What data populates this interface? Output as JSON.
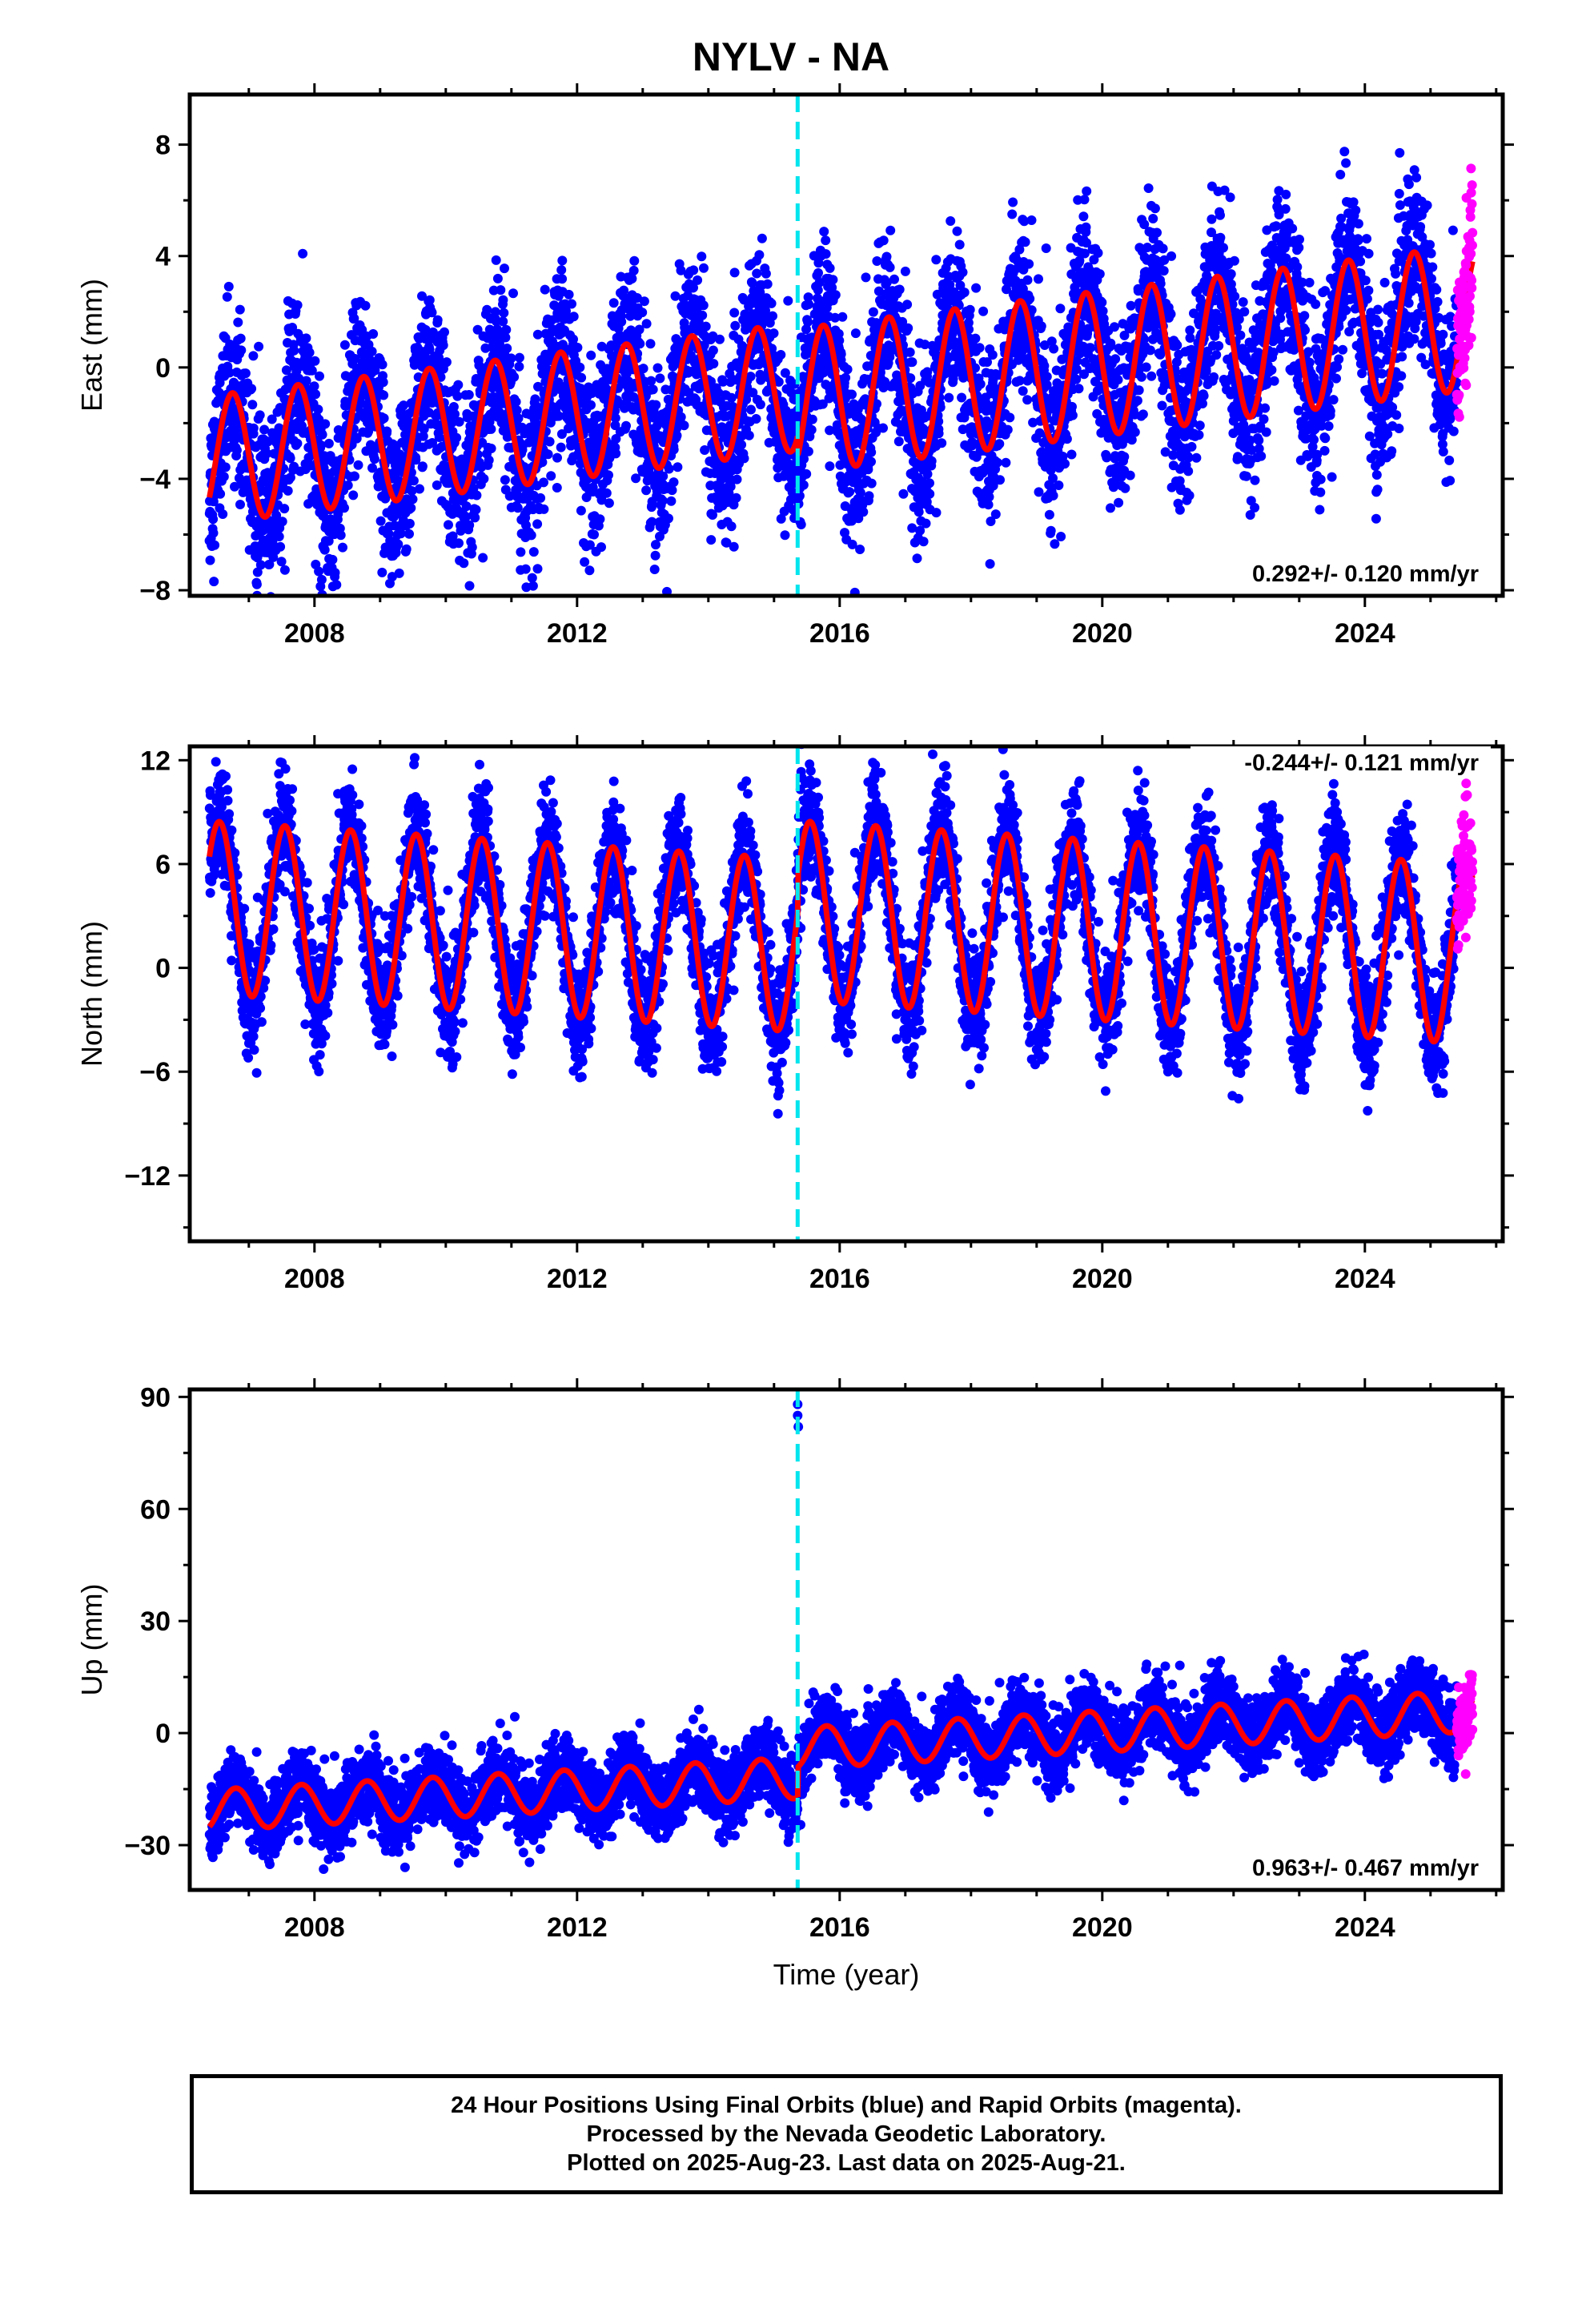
{
  "title": "NYLV - NA",
  "caption": {
    "line1": "24 Hour Positions Using Final Orbits (blue) and Rapid Orbits (magenta).",
    "line2": "Processed by the Nevada Geodetic Laboratory.",
    "line3": "Plotted on 2025-Aug-23. Last data on 2025-Aug-21."
  },
  "colors": {
    "final": "#0000ff",
    "rapid": "#ff00ff",
    "model": "#ff0000",
    "offset": "#00e5ee"
  },
  "chart_data": [
    {
      "type": "scatter",
      "component": "East",
      "ylabel": "East (mm)",
      "xlabel": "",
      "xlim": [
        2006.1,
        2026.1
      ],
      "ylim": [
        -8.2,
        9.8
      ],
      "yticks": [
        -8,
        -4,
        0,
        4,
        8
      ],
      "xticks": [
        2008,
        2012,
        2016,
        2020,
        2024
      ],
      "offset_epoch": 2015.36,
      "rate": "0.292+/- 0.120 mm/yr",
      "data_start": 2006.4,
      "data_end": 2025.64,
      "rapid_start": 2025.4,
      "model_segments": [
        {
          "x0": 2006.4,
          "x1": 2015.36,
          "offset": -0.7,
          "trend": 0.292,
          "amp": 2.3,
          "phase": 0.5
        },
        {
          "x0": 2015.36,
          "x1": 2025.64,
          "offset": -1.2,
          "trend": 0.292,
          "amp": 2.6,
          "phase": 0.5
        }
      ],
      "scatter_sigma": 1.5
    },
    {
      "type": "scatter",
      "component": "North",
      "ylabel": "North (mm)",
      "xlabel": "",
      "xlim": [
        2006.1,
        2026.1
      ],
      "ylim": [
        -15.8,
        12.8
      ],
      "yticks": [
        -12,
        -6,
        0,
        6,
        12
      ],
      "xticks": [
        2008,
        2012,
        2016,
        2020,
        2024
      ],
      "offset_epoch": 2015.36,
      "rate": "-0.244+/- 0.121 mm/yr",
      "data_start": 2006.4,
      "data_end": 2025.64,
      "rapid_start": 2025.4,
      "model_segments": [
        {
          "x0": 2006.4,
          "x1": 2015.36,
          "offset": 1.3,
          "trend": -0.244,
          "amp": 5.0,
          "phase": 0.3
        },
        {
          "x0": 2015.36,
          "x1": 2025.64,
          "offset": 3.3,
          "trend": -0.244,
          "amp": 5.2,
          "phase": 0.3
        }
      ],
      "scatter_sigma": 1.6
    },
    {
      "type": "scatter",
      "component": "Up",
      "ylabel": "Up (mm)",
      "xlabel": "Time (year)",
      "xlim": [
        2006.1,
        2026.1
      ],
      "ylim": [
        -42,
        92
      ],
      "yticks": [
        -30,
        0,
        30,
        60,
        90
      ],
      "xticks": [
        2008,
        2012,
        2016,
        2020,
        2024
      ],
      "offset_epoch": 2015.36,
      "rate": "0.963+/- 0.467 mm/yr",
      "data_start": 2006.4,
      "data_end": 2025.64,
      "rapid_start": 2025.4,
      "outliers": [
        [
          2015.36,
          88
        ],
        [
          2015.36,
          85
        ],
        [
          2015.37,
          82
        ]
      ],
      "model_segments": [
        {
          "x0": 2006.4,
          "x1": 2015.36,
          "offset": -12,
          "trend": 0.963,
          "amp": 5.5,
          "phase": 0.55
        },
        {
          "x0": 2015.36,
          "x1": 2025.64,
          "offset": -4,
          "trend": 0.963,
          "amp": 5.5,
          "phase": 0.55
        }
      ],
      "scatter_sigma": 4.8
    }
  ]
}
